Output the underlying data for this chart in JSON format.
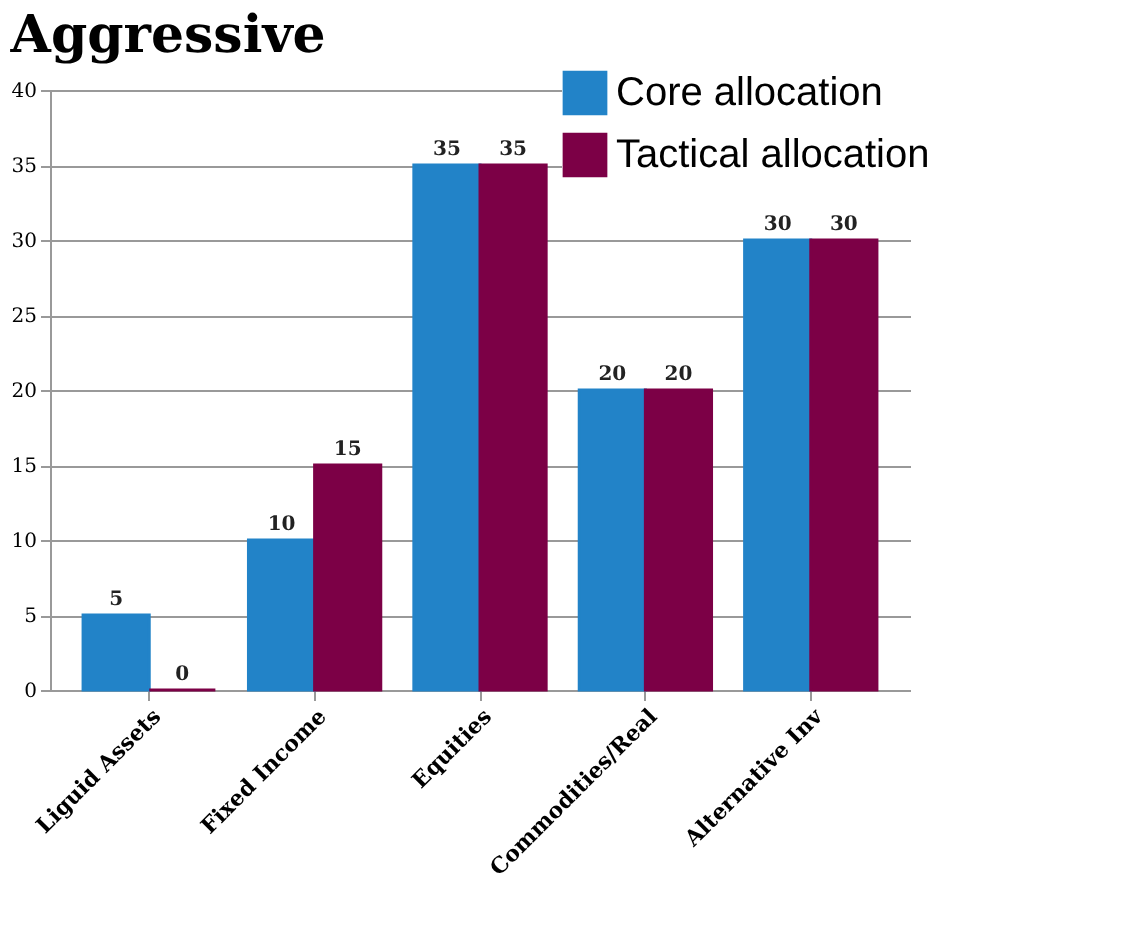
{
  "chart_data": {
    "type": "bar",
    "title": "Aggressive",
    "categories": [
      "Liguid Assets",
      "Fixed Income",
      "Equities",
      "Commodities/Real",
      "Alternative Inv"
    ],
    "series": [
      {
        "name": "Core allocation",
        "color": "#2283c8",
        "values": [
          5,
          10,
          35,
          20,
          30
        ]
      },
      {
        "name": "Tactical allocation",
        "color": "#7c0046",
        "values": [
          0,
          15,
          35,
          20,
          30
        ]
      }
    ],
    "ylim": [
      0,
      40
    ],
    "yticks": [
      0,
      5,
      10,
      15,
      20,
      25,
      30,
      35,
      40
    ],
    "grid": "y",
    "legend": "top right",
    "data_labels": true
  }
}
